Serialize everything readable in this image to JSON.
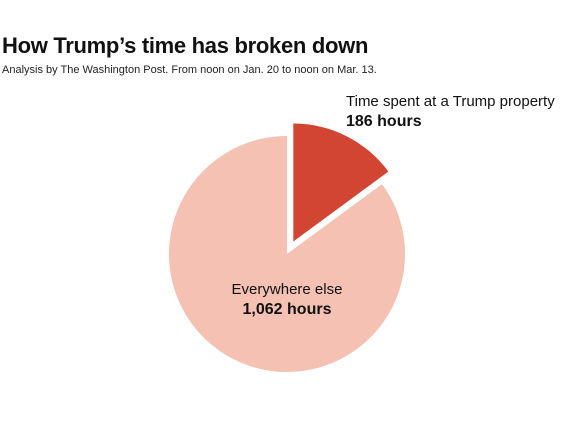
{
  "header": {
    "title": "How Trump’s time has broken down",
    "subtitle": "Analysis by The Washington Post. From noon on Jan. 20 to noon on Mar. 13."
  },
  "chart_data": {
    "type": "pie",
    "title": "How Trump’s time has broken down",
    "subtitle": "Analysis by The Washington Post. From noon on Jan. 20 to noon on Mar. 13.",
    "slices": [
      {
        "label": "Time spent at a Trump property",
        "value": 186,
        "value_label": "186 hours",
        "color": "#d14532",
        "exploded": true
      },
      {
        "label": "Everywhere else",
        "value": 1062,
        "value_label": "1,062 hours",
        "color": "#f4c1b3",
        "exploded": false
      }
    ],
    "start_angle": "12 o'clock",
    "direction": "clockwise",
    "legend": "none"
  }
}
